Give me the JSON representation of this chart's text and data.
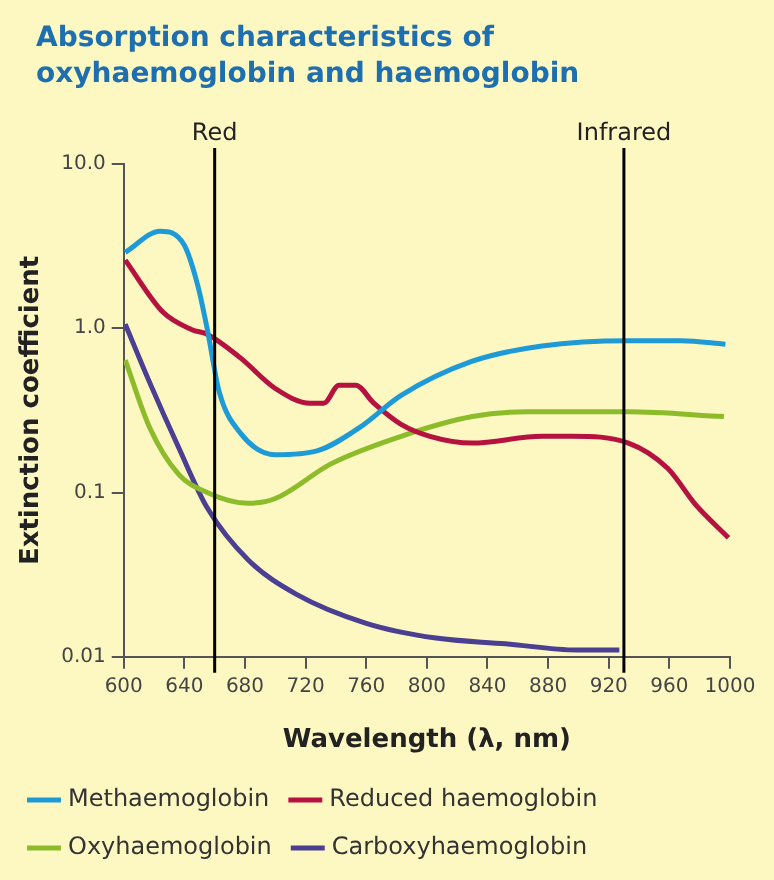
{
  "chart_data": {
    "type": "line",
    "title": "Absorption characteristics of oxyhaemoglobin and haemoglobin",
    "xlabel": "Wavelength (λ, nm)",
    "ylabel": "Extinction coefficient",
    "log": "y",
    "xlim": [
      600,
      1000
    ],
    "xticks": [
      600,
      640,
      680,
      720,
      760,
      800,
      840,
      880,
      920,
      960,
      1000
    ],
    "ylim": [
      0.01,
      10
    ],
    "yticks": [
      {
        "value": 10,
        "label": "10.0"
      },
      {
        "value": 1,
        "label": "1.0"
      },
      0.1,
      0.01
    ],
    "grid": false,
    "legend": "bottom",
    "marker": "none",
    "line_style": "solid",
    "ref_lines": [
      {
        "axis": "x",
        "value": 660,
        "label": "Red",
        "color": "#000000"
      },
      {
        "axis": "x",
        "value": 930,
        "label": "Infrared",
        "color": "#000000"
      }
    ],
    "series": [
      {
        "name": "Methaemoglobin",
        "color": "#1e9ad6",
        "x": [
          601,
          624,
          640,
          649,
          655,
          663,
          677,
          700,
          728,
          756,
          783,
          830,
          876,
          933,
          968,
          997
        ],
        "values": [
          2.9,
          3.9,
          3.2,
          1.8,
          1.0,
          0.41,
          0.23,
          0.17,
          0.18,
          0.25,
          0.39,
          0.63,
          0.78,
          0.84,
          0.84,
          0.8
        ]
      },
      {
        "name": "Reduced haemoglobin",
        "color": "#b5123f",
        "x": [
          601,
          626,
          645,
          655,
          677,
          700,
          723,
          732,
          742,
          753,
          765,
          783,
          802,
          830,
          876,
          896,
          933,
          959,
          977,
          999
        ],
        "values": [
          2.6,
          1.25,
          0.98,
          0.92,
          0.66,
          0.43,
          0.35,
          0.35,
          0.45,
          0.45,
          0.35,
          0.26,
          0.22,
          0.2,
          0.22,
          0.22,
          0.2,
          0.14,
          0.085,
          0.053
        ]
      },
      {
        "name": "Oxyhaemoglobin",
        "color": "#8cbc2a",
        "x": [
          601,
          617,
          636,
          655,
          682,
          700,
          737,
          783,
          830,
          866,
          933,
          996
        ],
        "values": [
          0.64,
          0.25,
          0.13,
          0.1,
          0.086,
          0.092,
          0.15,
          0.22,
          0.29,
          0.31,
          0.31,
          0.29
        ]
      },
      {
        "name": "Carboxyhaemoglobin",
        "color": "#4b3f91",
        "x": [
          601,
          617,
          636,
          655,
          682,
          714,
          760,
          806,
          852,
          899,
          927
        ],
        "values": [
          1.06,
          0.47,
          0.19,
          0.081,
          0.039,
          0.024,
          0.016,
          0.013,
          0.012,
          0.011,
          0.011
        ]
      }
    ]
  }
}
